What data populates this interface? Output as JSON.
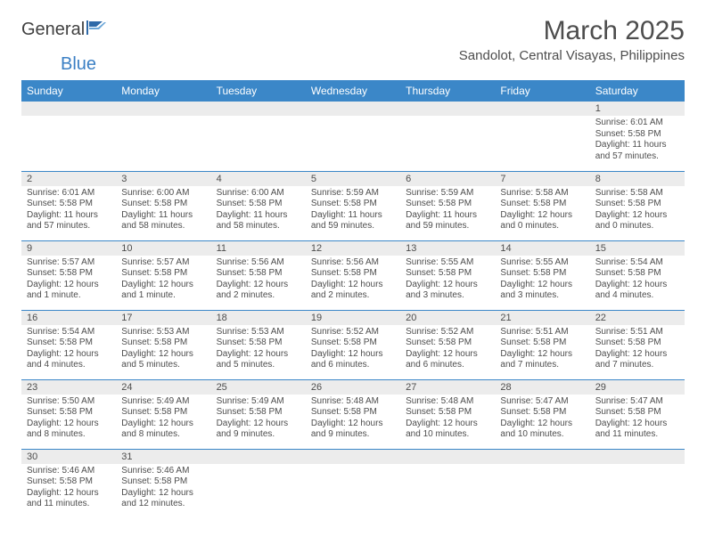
{
  "brand": {
    "general": "General",
    "blue": "Blue"
  },
  "title": "March 2025",
  "location": "Sandolot, Central Visayas, Philippines",
  "colors": {
    "header_bg": "#3b87c8",
    "header_text": "#ffffff",
    "gray_bg": "#ececec",
    "text": "#4d4d4d",
    "border": "#3b87c8"
  },
  "typography": {
    "title_fontsize": 30,
    "location_fontsize": 15,
    "dayhead_fontsize": 12,
    "body_fontsize": 10
  },
  "day_headers": [
    "Sunday",
    "Monday",
    "Tuesday",
    "Wednesday",
    "Thursday",
    "Friday",
    "Saturday"
  ],
  "weeks": [
    [
      null,
      null,
      null,
      null,
      null,
      null,
      {
        "n": "1",
        "sr": "Sunrise: 6:01 AM",
        "ss": "Sunset: 5:58 PM",
        "dl": "Daylight: 11 hours and 57 minutes."
      }
    ],
    [
      {
        "n": "2",
        "sr": "Sunrise: 6:01 AM",
        "ss": "Sunset: 5:58 PM",
        "dl": "Daylight: 11 hours and 57 minutes."
      },
      {
        "n": "3",
        "sr": "Sunrise: 6:00 AM",
        "ss": "Sunset: 5:58 PM",
        "dl": "Daylight: 11 hours and 58 minutes."
      },
      {
        "n": "4",
        "sr": "Sunrise: 6:00 AM",
        "ss": "Sunset: 5:58 PM",
        "dl": "Daylight: 11 hours and 58 minutes."
      },
      {
        "n": "5",
        "sr": "Sunrise: 5:59 AM",
        "ss": "Sunset: 5:58 PM",
        "dl": "Daylight: 11 hours and 59 minutes."
      },
      {
        "n": "6",
        "sr": "Sunrise: 5:59 AM",
        "ss": "Sunset: 5:58 PM",
        "dl": "Daylight: 11 hours and 59 minutes."
      },
      {
        "n": "7",
        "sr": "Sunrise: 5:58 AM",
        "ss": "Sunset: 5:58 PM",
        "dl": "Daylight: 12 hours and 0 minutes."
      },
      {
        "n": "8",
        "sr": "Sunrise: 5:58 AM",
        "ss": "Sunset: 5:58 PM",
        "dl": "Daylight: 12 hours and 0 minutes."
      }
    ],
    [
      {
        "n": "9",
        "sr": "Sunrise: 5:57 AM",
        "ss": "Sunset: 5:58 PM",
        "dl": "Daylight: 12 hours and 1 minute."
      },
      {
        "n": "10",
        "sr": "Sunrise: 5:57 AM",
        "ss": "Sunset: 5:58 PM",
        "dl": "Daylight: 12 hours and 1 minute."
      },
      {
        "n": "11",
        "sr": "Sunrise: 5:56 AM",
        "ss": "Sunset: 5:58 PM",
        "dl": "Daylight: 12 hours and 2 minutes."
      },
      {
        "n": "12",
        "sr": "Sunrise: 5:56 AM",
        "ss": "Sunset: 5:58 PM",
        "dl": "Daylight: 12 hours and 2 minutes."
      },
      {
        "n": "13",
        "sr": "Sunrise: 5:55 AM",
        "ss": "Sunset: 5:58 PM",
        "dl": "Daylight: 12 hours and 3 minutes."
      },
      {
        "n": "14",
        "sr": "Sunrise: 5:55 AM",
        "ss": "Sunset: 5:58 PM",
        "dl": "Daylight: 12 hours and 3 minutes."
      },
      {
        "n": "15",
        "sr": "Sunrise: 5:54 AM",
        "ss": "Sunset: 5:58 PM",
        "dl": "Daylight: 12 hours and 4 minutes."
      }
    ],
    [
      {
        "n": "16",
        "sr": "Sunrise: 5:54 AM",
        "ss": "Sunset: 5:58 PM",
        "dl": "Daylight: 12 hours and 4 minutes."
      },
      {
        "n": "17",
        "sr": "Sunrise: 5:53 AM",
        "ss": "Sunset: 5:58 PM",
        "dl": "Daylight: 12 hours and 5 minutes."
      },
      {
        "n": "18",
        "sr": "Sunrise: 5:53 AM",
        "ss": "Sunset: 5:58 PM",
        "dl": "Daylight: 12 hours and 5 minutes."
      },
      {
        "n": "19",
        "sr": "Sunrise: 5:52 AM",
        "ss": "Sunset: 5:58 PM",
        "dl": "Daylight: 12 hours and 6 minutes."
      },
      {
        "n": "20",
        "sr": "Sunrise: 5:52 AM",
        "ss": "Sunset: 5:58 PM",
        "dl": "Daylight: 12 hours and 6 minutes."
      },
      {
        "n": "21",
        "sr": "Sunrise: 5:51 AM",
        "ss": "Sunset: 5:58 PM",
        "dl": "Daylight: 12 hours and 7 minutes."
      },
      {
        "n": "22",
        "sr": "Sunrise: 5:51 AM",
        "ss": "Sunset: 5:58 PM",
        "dl": "Daylight: 12 hours and 7 minutes."
      }
    ],
    [
      {
        "n": "23",
        "sr": "Sunrise: 5:50 AM",
        "ss": "Sunset: 5:58 PM",
        "dl": "Daylight: 12 hours and 8 minutes."
      },
      {
        "n": "24",
        "sr": "Sunrise: 5:49 AM",
        "ss": "Sunset: 5:58 PM",
        "dl": "Daylight: 12 hours and 8 minutes."
      },
      {
        "n": "25",
        "sr": "Sunrise: 5:49 AM",
        "ss": "Sunset: 5:58 PM",
        "dl": "Daylight: 12 hours and 9 minutes."
      },
      {
        "n": "26",
        "sr": "Sunrise: 5:48 AM",
        "ss": "Sunset: 5:58 PM",
        "dl": "Daylight: 12 hours and 9 minutes."
      },
      {
        "n": "27",
        "sr": "Sunrise: 5:48 AM",
        "ss": "Sunset: 5:58 PM",
        "dl": "Daylight: 12 hours and 10 minutes."
      },
      {
        "n": "28",
        "sr": "Sunrise: 5:47 AM",
        "ss": "Sunset: 5:58 PM",
        "dl": "Daylight: 12 hours and 10 minutes."
      },
      {
        "n": "29",
        "sr": "Sunrise: 5:47 AM",
        "ss": "Sunset: 5:58 PM",
        "dl": "Daylight: 12 hours and 11 minutes."
      }
    ],
    [
      {
        "n": "30",
        "sr": "Sunrise: 5:46 AM",
        "ss": "Sunset: 5:58 PM",
        "dl": "Daylight: 12 hours and 11 minutes."
      },
      {
        "n": "31",
        "sr": "Sunrise: 5:46 AM",
        "ss": "Sunset: 5:58 PM",
        "dl": "Daylight: 12 hours and 12 minutes."
      },
      null,
      null,
      null,
      null,
      null
    ]
  ]
}
